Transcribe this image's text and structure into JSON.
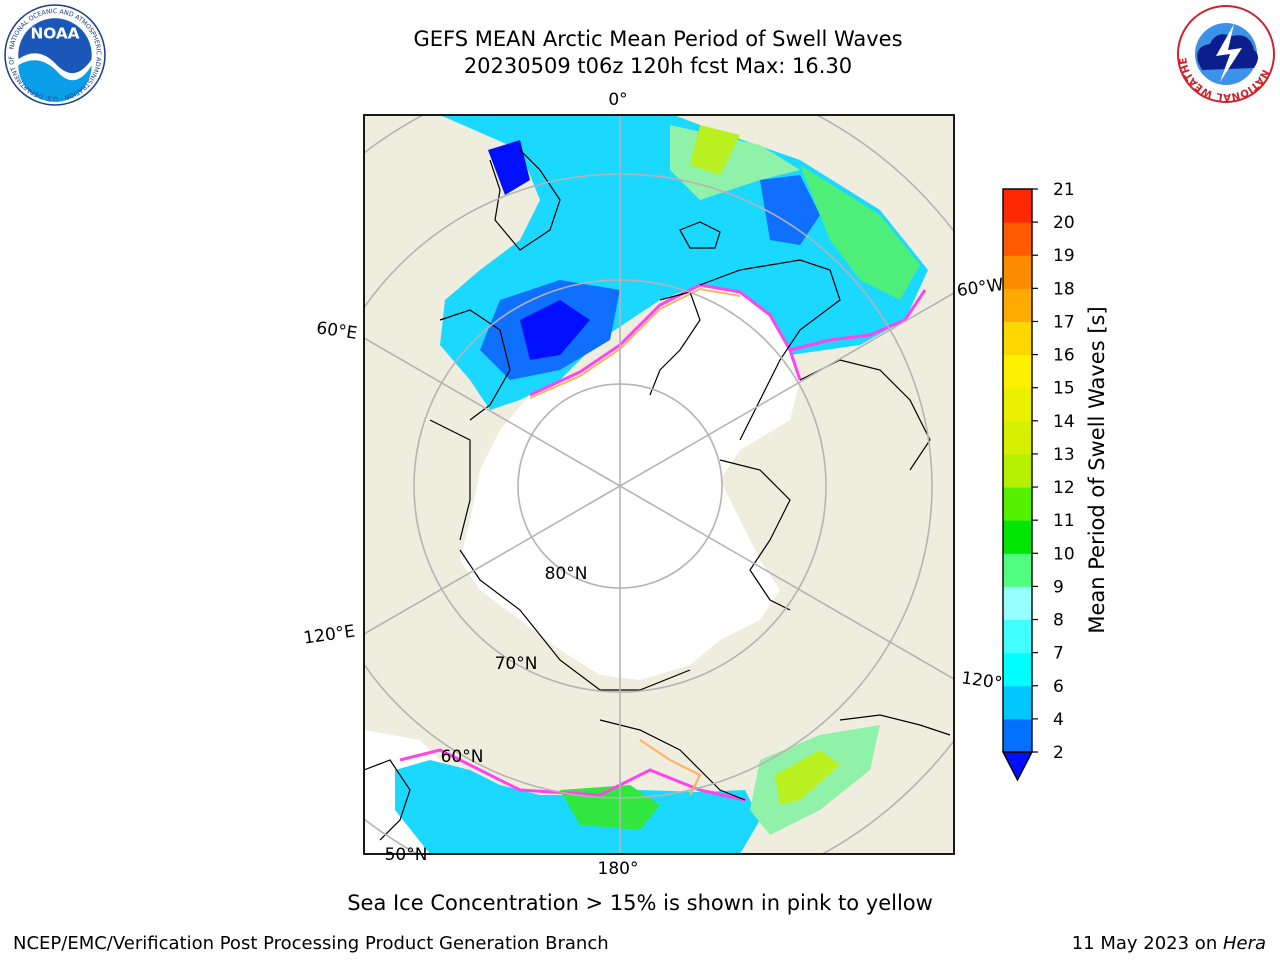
{
  "title": {
    "line1": "GEFS MEAN Arctic Mean Period of Swell Waves",
    "line2": "20230509 t06z 120h fcst   Max: 16.30"
  },
  "logos": {
    "noaa": {
      "text": "NOAA",
      "ring_text": "NATIONAL OCEANIC AND ATMOSPHERIC ADMINISTRATION · U.S. DEPARTMENT OF COMMERCE"
    },
    "nws": {
      "ring_text": "NATIONAL WEATHER SERVICE"
    }
  },
  "map": {
    "projection": "north-polar-stereographic",
    "longitude_labels": {
      "top": "0°",
      "left_upper": "60°E",
      "left_lower": "120°E",
      "bottom": "180°",
      "right_upper": "60°W",
      "right_lower": "120°"
    },
    "latitude_labels": {
      "lat80": "80°N",
      "lat70": "70°N",
      "lat60": "60°N",
      "lat50": "50°N"
    },
    "colors": {
      "land": "#efedde",
      "ice": "#ffffff",
      "grid": "#b4b4b4",
      "coast": "#000000"
    }
  },
  "colorbar": {
    "label": "Mean Period of Swell Waves [s]",
    "levels": [
      "2",
      "4",
      "6",
      "7",
      "8",
      "9",
      "10",
      "11",
      "12",
      "13",
      "14",
      "15",
      "16",
      "17",
      "18",
      "19",
      "20",
      "21"
    ],
    "colors": [
      "#0070ff",
      "#00c8ff",
      "#00ffff",
      "#40ffff",
      "#96ffff",
      "#50ff80",
      "#00e600",
      "#55f000",
      "#b4f000",
      "#d7f000",
      "#ebf000",
      "#fff000",
      "#ffd700",
      "#ffaa00",
      "#ff8c00",
      "#ff5a00",
      "#ff2800"
    ],
    "under_color": "#0010ff"
  },
  "ice_note": "Sea Ice Concentration > 15% is shown in pink to yellow",
  "footer": {
    "left": "NCEP/EMC/Verification Post Processing Product Generation Branch",
    "right_prefix": "11 May 2023 on ",
    "right_machine": "Hera"
  }
}
